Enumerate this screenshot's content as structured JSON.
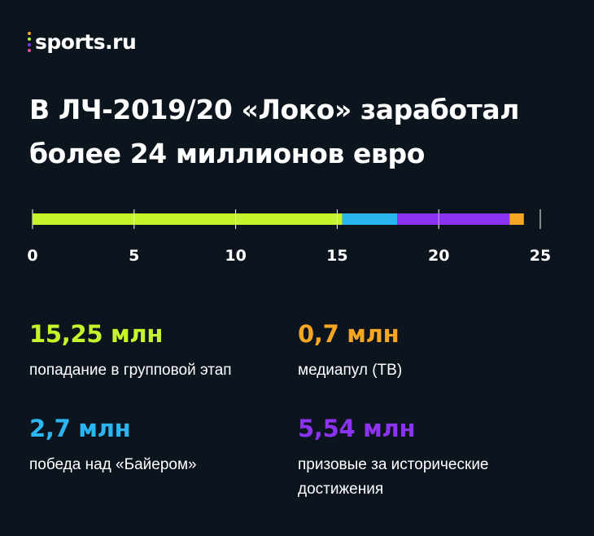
{
  "logo": {
    "text": "sports.ru",
    "dot_colors": [
      "#f5a623",
      "#b7f031",
      "#7c3aed",
      "#e94fa0"
    ]
  },
  "title": {
    "line1": "В ЛЧ-2019/20 «Локо» заработал",
    "line2": "более 24 миллионов евро"
  },
  "chart_data": {
    "type": "bar",
    "orientation": "horizontal",
    "stacked": true,
    "xlim": [
      0,
      25
    ],
    "ticks": [
      "0",
      "5",
      "10",
      "15",
      "20",
      "25"
    ],
    "tick_values": [
      0,
      5,
      10,
      15,
      20,
      25
    ],
    "series": [
      {
        "values": [
          15.25
        ],
        "color": "#c6f42a"
      },
      {
        "values": [
          2.7
        ],
        "color": "#2bb6f2"
      },
      {
        "values": [
          5.54
        ],
        "color": "#8b33f0"
      },
      {
        "values": [
          0.7
        ],
        "color": "#f5a623"
      }
    ]
  },
  "stats": [
    {
      "value": "15,25 млн",
      "desc": "попадание в групповой этап",
      "color": "#c6f42a"
    },
    {
      "value": "0,7 млн",
      "desc": "медиапул (ТВ)",
      "color": "#f5a623"
    },
    {
      "value": "2,7 млн",
      "desc": "победа над «Байером»",
      "color": "#2bb6f2"
    },
    {
      "value": "5,54 млн",
      "desc": "призовые за исторические достижения",
      "color": "#8b33f0"
    }
  ]
}
